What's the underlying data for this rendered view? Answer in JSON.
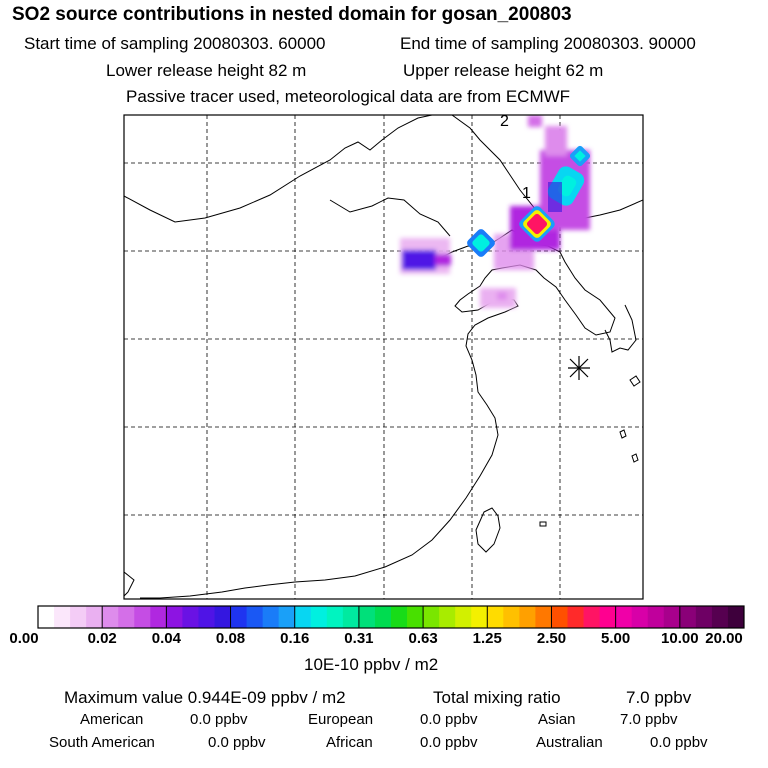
{
  "header": {
    "title": "SO2 source contributions in nested domain for gosan_200803",
    "start_time": "Start time of sampling 20080303. 60000",
    "end_time": "End time of sampling 20080303. 90000",
    "lower_release": "Lower release height   82 m",
    "upper_release": "Upper release height   62 m",
    "tracer_note": "Passive tracer used, meteorological data are from ECMWF"
  },
  "map": {
    "labels": {
      "label_1": "1",
      "label_2": "2"
    },
    "station_marker": "asterisk-station-marker",
    "colors": {
      "frame": "#000000",
      "grid": "#000000",
      "coast": "#000000"
    }
  },
  "colorbar": {
    "tick_labels": [
      "0.00",
      "0.02",
      "0.04",
      "0.08",
      "0.16",
      "0.31",
      "0.63",
      "1.25",
      "2.50",
      "5.00",
      "10.00",
      "20.00"
    ],
    "segment_colors": [
      "#ffffff",
      "#fbe7fb",
      "#f4ccf6",
      "#eab0f1",
      "#de8cec",
      "#d46fe8",
      "#c54de4",
      "#b028e0",
      "#8d14e2",
      "#6a12e4",
      "#4f14e6",
      "#3417e0",
      "#1f34f0",
      "#1a58f4",
      "#1a7cf8",
      "#1aa0f8",
      "#08d6f2",
      "#00f0e0",
      "#00f4c0",
      "#00eaa0",
      "#00e07a",
      "#00dc50",
      "#18dc18",
      "#48e000",
      "#7ae600",
      "#a8ec00",
      "#d2f000",
      "#f4f000",
      "#ffdc00",
      "#ffc000",
      "#ffa000",
      "#ff7800",
      "#ff5000",
      "#ff2a2a",
      "#ff1464",
      "#ff0090",
      "#f000a8",
      "#d800a8",
      "#c0009c",
      "#a8008c",
      "#8a0078",
      "#6e0064",
      "#560050",
      "#3e003c"
    ],
    "unit": "10E-10 ppbv / m2"
  },
  "summary": {
    "max_value": "Maximum value  0.944E-09 ppbv / m2",
    "total_mixing_label": "Total mixing ratio",
    "total_mixing_value": "7.0 ppbv",
    "regions": [
      {
        "name": "American",
        "value": "0.0 ppbv"
      },
      {
        "name": "European",
        "value": "0.0 ppbv"
      },
      {
        "name": "Asian",
        "value": "7.0 ppbv"
      },
      {
        "name": "South American",
        "value": "0.0 ppbv"
      },
      {
        "name": "African",
        "value": "0.0 ppbv"
      },
      {
        "name": "Australian",
        "value": "0.0 ppbv"
      }
    ]
  }
}
